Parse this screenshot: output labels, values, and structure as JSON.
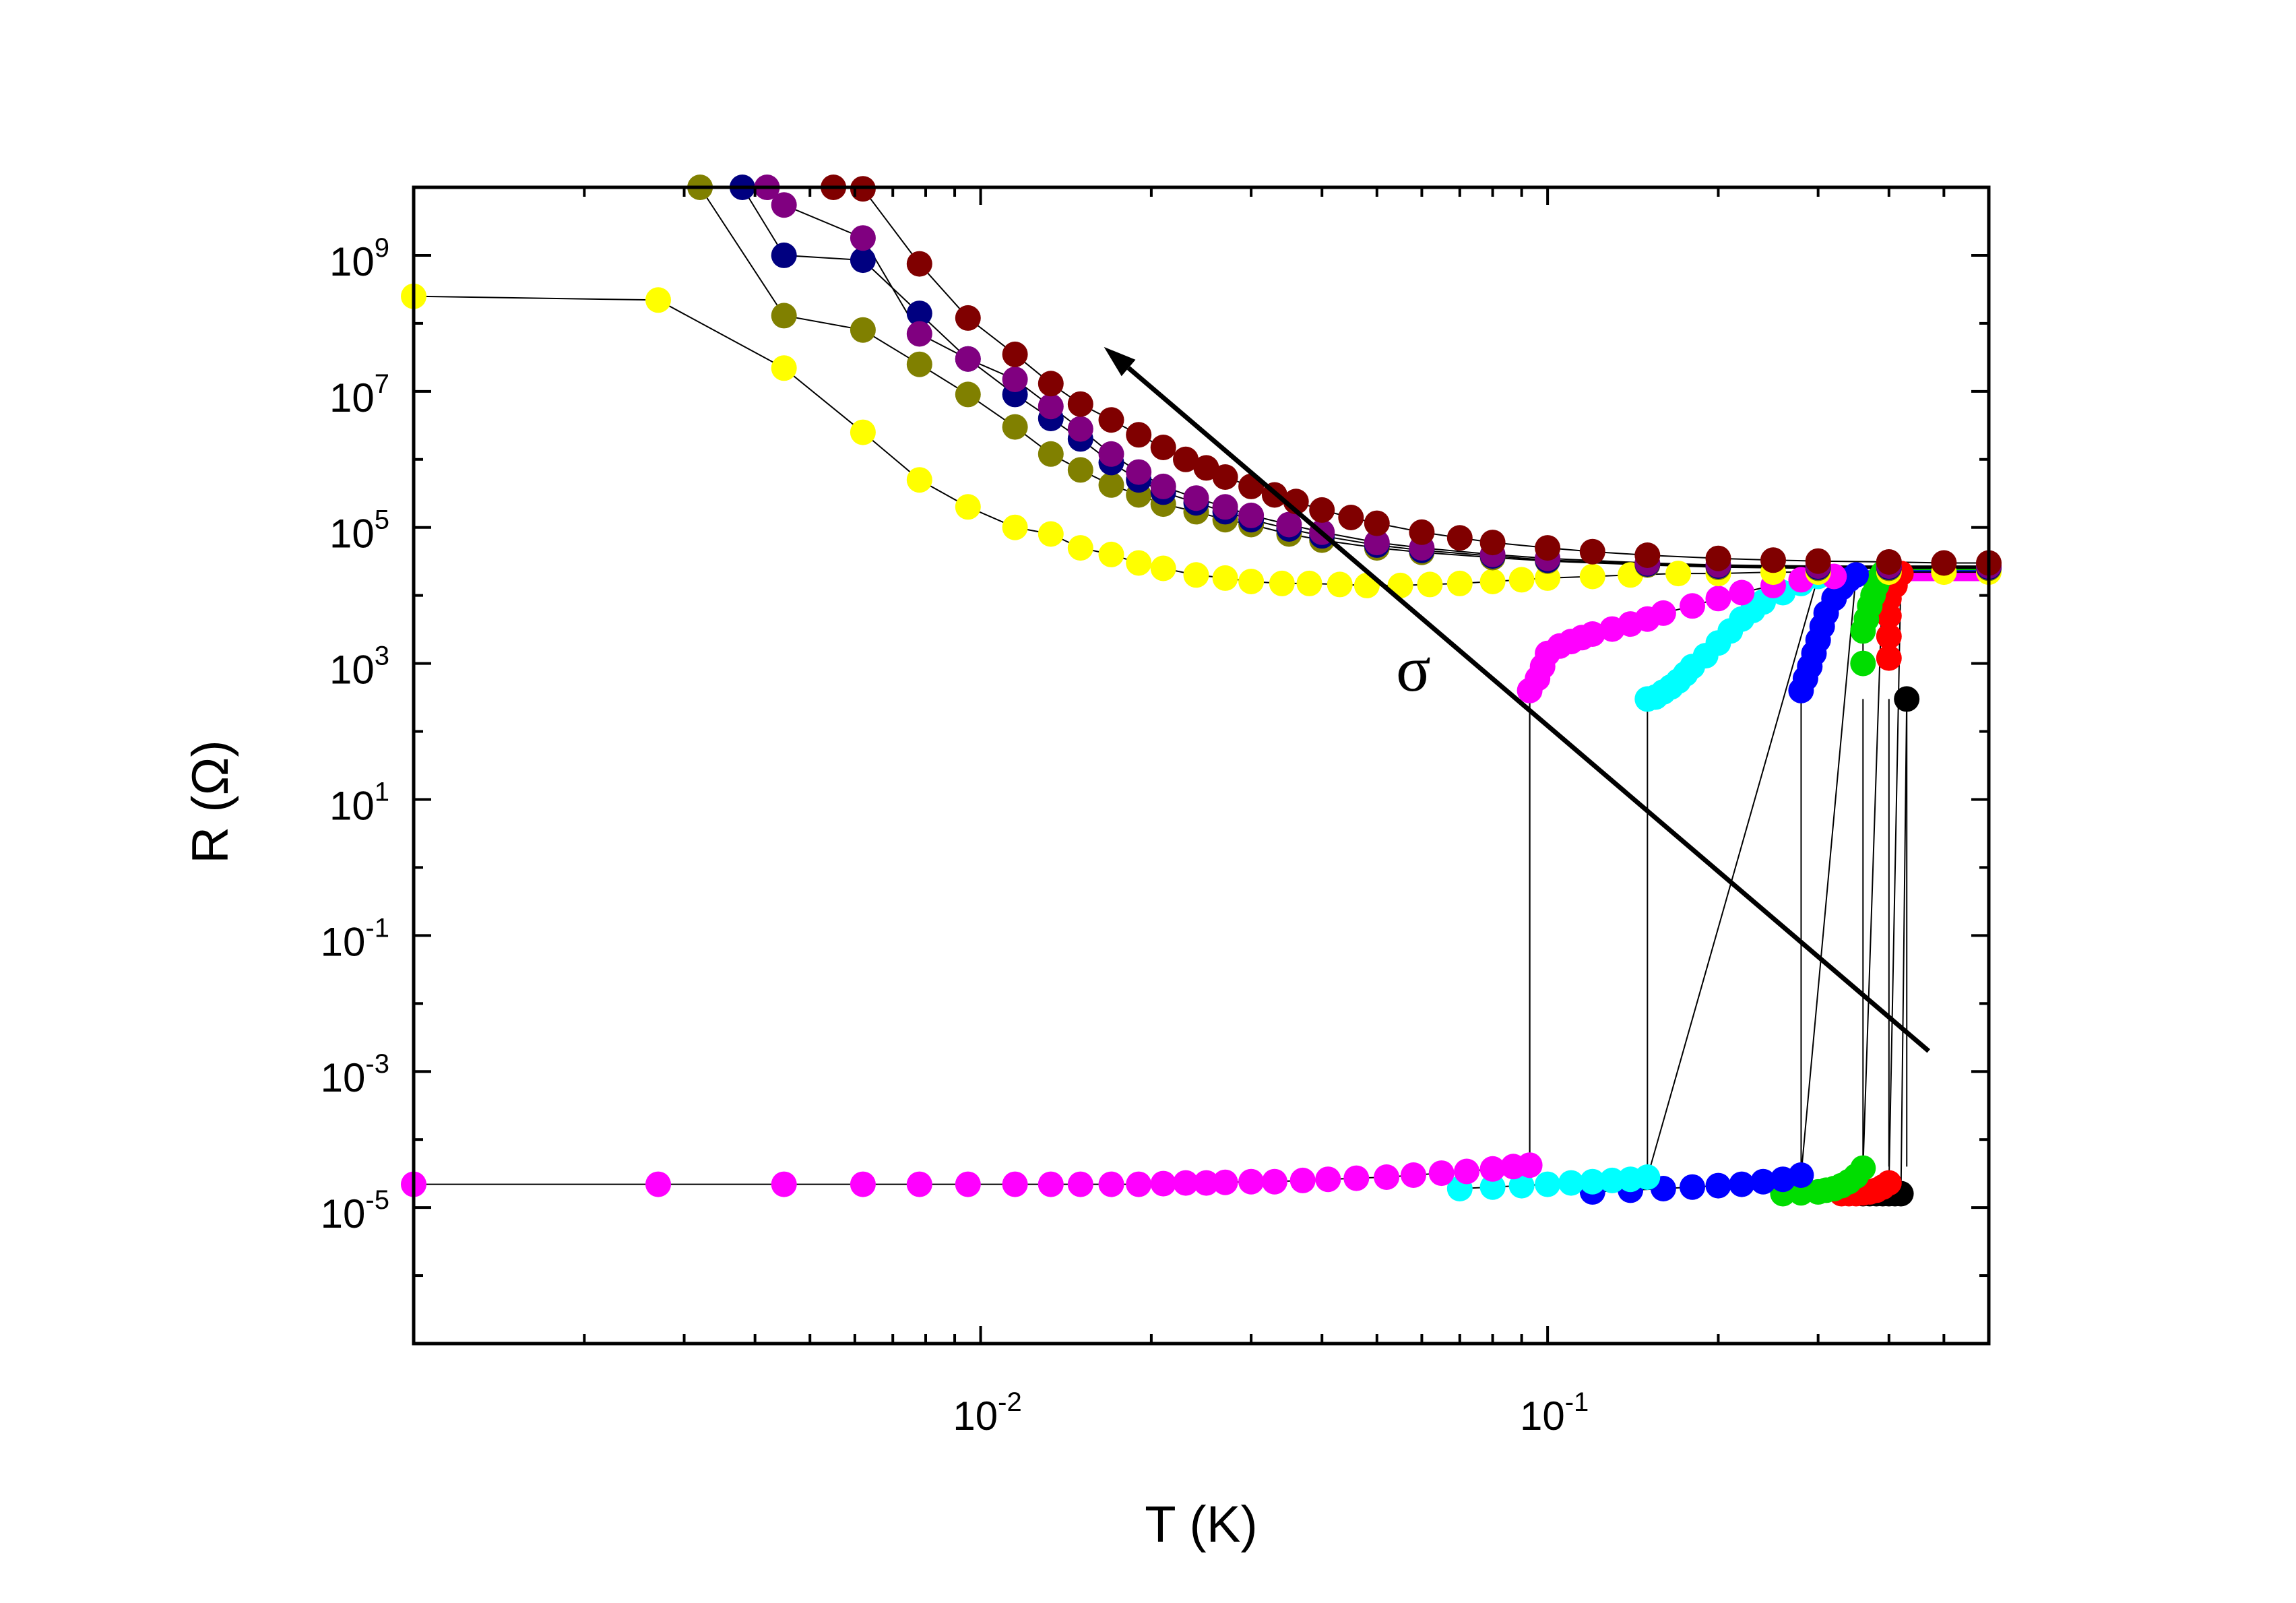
{
  "chart_data": {
    "type": "scatter",
    "title": "",
    "xlabel": "T (K)",
    "ylabel": "R (Ω)",
    "xscale": "log",
    "yscale": "log",
    "xlim": [
      0.001,
      0.6
    ],
    "ylim": [
      1e-07,
      10000000000.0
    ],
    "x_ticks": [
      {
        "value": 0.01,
        "base": "10",
        "exp": "-2"
      },
      {
        "value": 0.1,
        "base": "10",
        "exp": "-1"
      }
    ],
    "y_ticks": [
      {
        "value": 1000000000.0,
        "base": "10",
        "exp": "9"
      },
      {
        "value": 10000000.0,
        "base": "10",
        "exp": "7"
      },
      {
        "value": 100000.0,
        "base": "10",
        "exp": "5"
      },
      {
        "value": 1000.0,
        "base": "10",
        "exp": "3"
      },
      {
        "value": 10,
        "base": "10",
        "exp": "1"
      },
      {
        "value": 0.1,
        "base": "10",
        "exp": "-1"
      },
      {
        "value": 0.001,
        "base": "10",
        "exp": "-3"
      },
      {
        "value": 1e-05,
        "base": "10",
        "exp": "-5"
      }
    ],
    "annotation": {
      "text": "σ",
      "arrow_from": [
        0.47,
        0.002
      ],
      "arrow_to": [
        0.0165,
        45000000.0
      ],
      "text_at": [
        0.058,
        400
      ]
    },
    "series": [
      {
        "name": "black",
        "color": "#000000",
        "x": [
          0.43,
          0.42,
          0.41,
          0.4,
          0.39,
          0.38,
          0.37,
          0.36
        ],
        "y": [
          300,
          1.6e-05,
          1.6e-05,
          1.6e-05,
          1.6e-05,
          1.6e-05,
          1.6e-05,
          1.6e-05
        ],
        "high_state": {
          "x": [
            0.43,
            0.6
          ],
          "y": [
            22000,
            22000
          ]
        },
        "transition_x": 0.43
      },
      {
        "name": "red",
        "color": "#ff0000",
        "x": [
          0.4,
          0.4,
          0.4,
          0.4,
          0.41,
          0.41,
          0.42,
          0.4,
          0.39,
          0.38,
          0.37,
          0.36,
          0.35,
          0.34,
          0.33
        ],
        "y": [
          1200,
          2500,
          5000,
          9000,
          14000,
          18000,
          21000,
          2.3e-05,
          2e-05,
          1.8e-05,
          1.7e-05,
          1.65e-05,
          1.6e-05,
          1.6e-05,
          1.6e-05
        ],
        "high_state": {
          "x": [
            0.42,
            0.6
          ],
          "y": [
            21000,
            21000
          ]
        },
        "transition_x": 0.4
      },
      {
        "name": "green",
        "color": "#00dd00",
        "x": [
          0.36,
          0.36,
          0.365,
          0.37,
          0.375,
          0.38,
          0.385,
          0.39,
          0.36,
          0.35,
          0.34,
          0.33,
          0.32,
          0.31,
          0.3,
          0.28,
          0.26
        ],
        "y": [
          1000,
          3000,
          4500,
          7000,
          10000,
          14000,
          18000,
          21000,
          3.8e-05,
          2.9e-05,
          2.4e-05,
          2.1e-05,
          1.9e-05,
          1.8e-05,
          1.7e-05,
          1.65e-05,
          1.6e-05
        ],
        "high_state": {
          "x": [
            0.39,
            0.6
          ],
          "y": [
            21000,
            21000
          ]
        },
        "transition_x": 0.36
      },
      {
        "name": "blue",
        "color": "#0000ff",
        "x": [
          0.28,
          0.285,
          0.29,
          0.295,
          0.3,
          0.305,
          0.31,
          0.32,
          0.33,
          0.34,
          0.35,
          0.28,
          0.26,
          0.24,
          0.22,
          0.2,
          0.18,
          0.16,
          0.14,
          0.12
        ],
        "y": [
          400,
          600,
          900,
          1400,
          2200,
          3500,
          5500,
          9000,
          13000,
          17000,
          20000,
          3e-05,
          2.6e-05,
          2.4e-05,
          2.2e-05,
          2.1e-05,
          2e-05,
          1.9e-05,
          1.8e-05,
          1.7e-05
        ],
        "high_state": {
          "x": [
            0.35,
            0.6
          ],
          "y": [
            20000,
            20000
          ]
        },
        "transition_x": 0.28
      },
      {
        "name": "cyan",
        "color": "#00ffff",
        "x": [
          0.15,
          0.155,
          0.16,
          0.165,
          0.17,
          0.175,
          0.18,
          0.19,
          0.2,
          0.21,
          0.22,
          0.23,
          0.24,
          0.26,
          0.28,
          0.3,
          0.15,
          0.14,
          0.13,
          0.12,
          0.11,
          0.1,
          0.09,
          0.08,
          0.07
        ],
        "y": [
          300,
          320,
          380,
          450,
          550,
          700,
          900,
          1300,
          2000,
          3000,
          4500,
          6000,
          8000,
          11000,
          15000,
          19000,
          2.8e-05,
          2.6e-05,
          2.5e-05,
          2.4e-05,
          2.3e-05,
          2.2e-05,
          2.1e-05,
          2e-05,
          1.9e-05
        ],
        "high_state": {
          "x": [
            0.3,
            0.6
          ],
          "y": [
            19000,
            19000
          ]
        },
        "transition_x": 0.15
      },
      {
        "name": "magenta",
        "color": "#ff00ff",
        "x": [
          0.001,
          0.0027,
          0.0045,
          0.0062,
          0.0078,
          0.0095,
          0.0115,
          0.0133,
          0.015,
          0.017,
          0.019,
          0.021,
          0.023,
          0.025,
          0.027,
          0.03,
          0.033,
          0.037,
          0.041,
          0.046,
          0.052,
          0.058,
          0.065,
          0.072,
          0.08,
          0.087,
          0.093,
          0.093,
          0.096,
          0.098,
          0.1,
          0.105,
          0.11,
          0.115,
          0.12,
          0.13,
          0.14,
          0.15,
          0.16,
          0.18,
          0.2,
          0.22,
          0.25,
          0.28,
          0.32
        ],
        "y": [
          2.2e-05,
          2.2e-05,
          2.2e-05,
          2.2e-05,
          2.2e-05,
          2.2e-05,
          2.2e-05,
          2.2e-05,
          2.2e-05,
          2.2e-05,
          2.2e-05,
          2.25e-05,
          2.3e-05,
          2.3e-05,
          2.35e-05,
          2.4e-05,
          2.4e-05,
          2.5e-05,
          2.6e-05,
          2.7e-05,
          2.8e-05,
          3e-05,
          3.2e-05,
          3.4e-05,
          3.7e-05,
          4e-05,
          4.2e-05,
          400,
          600,
          900,
          1400,
          1800,
          2100,
          2400,
          2700,
          3200,
          3800,
          4500,
          5500,
          7000,
          9000,
          11000,
          14000,
          17000,
          19000
        ],
        "high_state": {
          "x": [
            0.32,
            0.6
          ],
          "y": [
            19000,
            19000
          ]
        },
        "transition_x": 0.093
      },
      {
        "name": "yellow",
        "color": "#ffff00",
        "x": [
          0.001,
          0.0027,
          0.0045,
          0.0062,
          0.0078,
          0.0095,
          0.0115,
          0.0133,
          0.015,
          0.017,
          0.019,
          0.021,
          0.024,
          0.027,
          0.03,
          0.034,
          0.038,
          0.043,
          0.048,
          0.055,
          0.062,
          0.07,
          0.08,
          0.09,
          0.1,
          0.12,
          0.14,
          0.17,
          0.2,
          0.25,
          0.3,
          0.4,
          0.5,
          0.6
        ],
        "y": [
          250000000.0,
          220000000.0,
          22000000.0,
          2500000.0,
          500000.0,
          200000.0,
          100000.0,
          80000.0,
          50000.0,
          40000.0,
          30000.0,
          25000.0,
          20000.0,
          18000.0,
          16000.0,
          15000.0,
          15000.0,
          14500.0,
          14000.0,
          14000.0,
          14500.0,
          15000.0,
          16000.0,
          17000.0,
          18000.0,
          19000.0,
          20000.0,
          21000.0,
          21000.0,
          22000.0,
          22000.0,
          22000.0,
          22000.0,
          22000.0
        ]
      },
      {
        "name": "olive",
        "color": "#808000",
        "x": [
          0.0032,
          0.0045,
          0.0062,
          0.0078,
          0.0095,
          0.0115,
          0.0133,
          0.015,
          0.017,
          0.019,
          0.021,
          0.024,
          0.027,
          0.03,
          0.035,
          0.04,
          0.05,
          0.06,
          0.08,
          0.1,
          0.15,
          0.2,
          0.3,
          0.4,
          0.6
        ],
        "y": [
          10000000000.0,
          130000000.0,
          80000000.0,
          25000000.0,
          9000000.0,
          3000000.0,
          1200000.0,
          700000.0,
          420000.0,
          300000.0,
          220000.0,
          170000.0,
          130000.0,
          110000.0,
          80000.0,
          65000.0,
          50000.0,
          43000.0,
          36000.0,
          32000.0,
          28000.0,
          26000.0,
          25000.0,
          25000.0,
          25000.0
        ]
      },
      {
        "name": "navy",
        "color": "#000080",
        "x": [
          0.0038,
          0.0045,
          0.0062,
          0.0078,
          0.0095,
          0.0115,
          0.0133,
          0.015,
          0.017,
          0.019,
          0.021,
          0.024,
          0.027,
          0.03,
          0.035,
          0.04,
          0.05,
          0.06,
          0.08,
          0.1,
          0.15,
          0.2,
          0.3,
          0.4,
          0.6
        ],
        "y": [
          10000000000.0,
          1000000000.0,
          850000000.0,
          140000000.0,
          30000000.0,
          9000000.0,
          4000000.0,
          2000000.0,
          900000.0,
          500000.0,
          330000.0,
          230000.0,
          170000.0,
          130000.0,
          95000.0,
          75000.0,
          55000.0,
          46000.0,
          38000.0,
          33000.0,
          29000.0,
          27000.0,
          26000.0,
          26000.0,
          26000.0
        ]
      },
      {
        "name": "purple",
        "color": "#800080",
        "x": [
          0.0042,
          0.0045,
          0.0062,
          0.0078,
          0.0095,
          0.0115,
          0.0133,
          0.015,
          0.017,
          0.019,
          0.021,
          0.024,
          0.027,
          0.03,
          0.035,
          0.04,
          0.05,
          0.06,
          0.08,
          0.1,
          0.15,
          0.2,
          0.3,
          0.4,
          0.6
        ],
        "y": [
          10000000000.0,
          5500000000.0,
          1800000000.0,
          70000000.0,
          30000000.0,
          15000000.0,
          6000000.0,
          2800000.0,
          1200000.0,
          650000.0,
          400000.0,
          270000.0,
          200000.0,
          150000.0,
          110000.0,
          85000.0,
          60000.0,
          50000.0,
          40000.0,
          35000.0,
          30000.0,
          28000.0,
          27000.0,
          27000.0,
          27000.0
        ]
      },
      {
        "name": "maroon",
        "color": "#800000",
        "x": [
          0.0055,
          0.0062,
          0.0078,
          0.0095,
          0.0115,
          0.0133,
          0.015,
          0.017,
          0.019,
          0.021,
          0.023,
          0.025,
          0.027,
          0.03,
          0.033,
          0.036,
          0.04,
          0.045,
          0.05,
          0.06,
          0.07,
          0.08,
          0.1,
          0.12,
          0.15,
          0.2,
          0.25,
          0.3,
          0.4,
          0.5,
          0.6
        ],
        "y": [
          10000000000.0,
          9500000000.0,
          750000000.0,
          120000000.0,
          35000000.0,
          13000000.0,
          6500000.0,
          3800000.0,
          2300000.0,
          1500000.0,
          1000000.0,
          750000.0,
          550000.0,
          400000.0,
          300000.0,
          240000.0,
          180000.0,
          140000.0,
          115000.0,
          85000.0,
          70000.0,
          60000.0,
          50000.0,
          44000.0,
          39000.0,
          35000.0,
          33000.0,
          32000.0,
          31000.0,
          30000.0,
          30000.0
        ]
      }
    ]
  }
}
